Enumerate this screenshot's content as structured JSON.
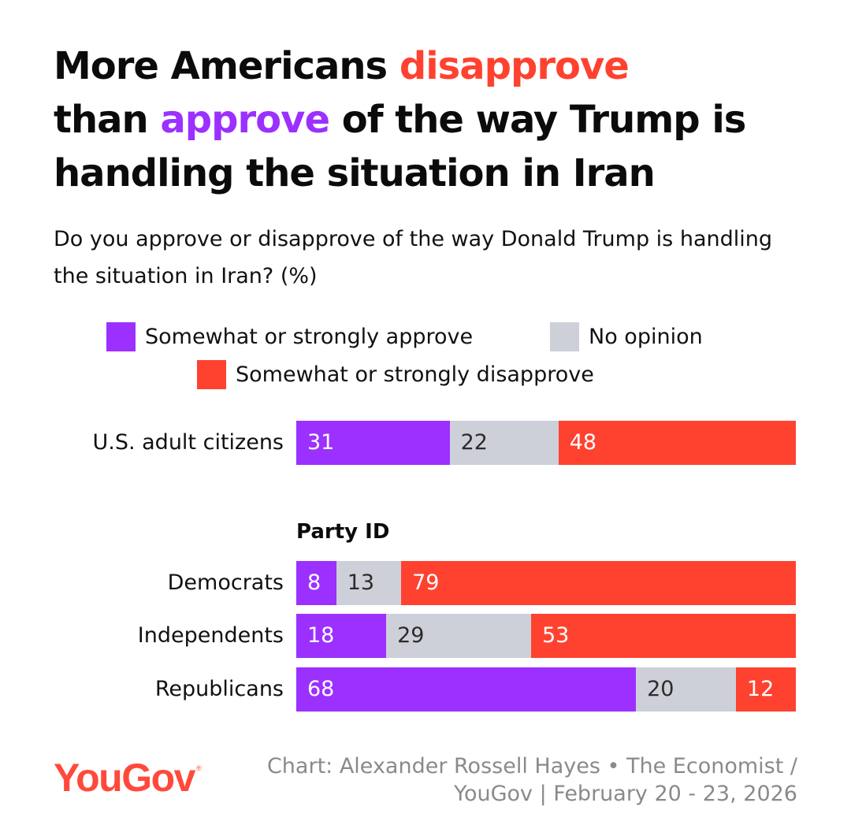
{
  "title": {
    "part1": "More Americans ",
    "highlight_disapprove": "disapprove",
    "part2": " than ",
    "highlight_approve": "approve",
    "part3": " of the way Trump is handling the situation in Iran"
  },
  "subtitle": "Do you approve or disapprove of the way Donald Trump is handling the situation in Iran? (%)",
  "colors": {
    "approve": "#9b30ff",
    "no_opinion": "#cdd0d8",
    "disapprove": "#ff4230",
    "brand": "#ff4a3b"
  },
  "legend": [
    {
      "key": "approve",
      "label": "Somewhat or strongly approve"
    },
    {
      "key": "no_opinion",
      "label": "No opinion"
    },
    {
      "key": "disapprove",
      "label": "Somewhat or strongly disapprove"
    }
  ],
  "chart_data": {
    "type": "bar",
    "orientation": "horizontal",
    "stacked": true,
    "unit": "%",
    "categories": [
      "U.S. adult citizens",
      "Democrats",
      "Independents",
      "Republicans"
    ],
    "groups": [
      {
        "header": "",
        "categories": [
          "U.S. adult citizens"
        ]
      },
      {
        "header": "Party ID",
        "categories": [
          "Democrats",
          "Independents",
          "Republicans"
        ]
      }
    ],
    "series": [
      {
        "name": "Somewhat or strongly approve",
        "values": [
          31,
          8,
          18,
          68
        ]
      },
      {
        "name": "No opinion",
        "values": [
          22,
          13,
          29,
          20
        ]
      },
      {
        "name": "Somewhat or strongly disapprove",
        "values": [
          48,
          79,
          53,
          12
        ]
      }
    ],
    "legend_position": "top"
  },
  "footer": {
    "logo_text": "YouGov",
    "logo_mark": "®",
    "source": "Chart: Alexander Rossell Hayes • The Economist / YouGov | February 20 - 23, 2026"
  }
}
